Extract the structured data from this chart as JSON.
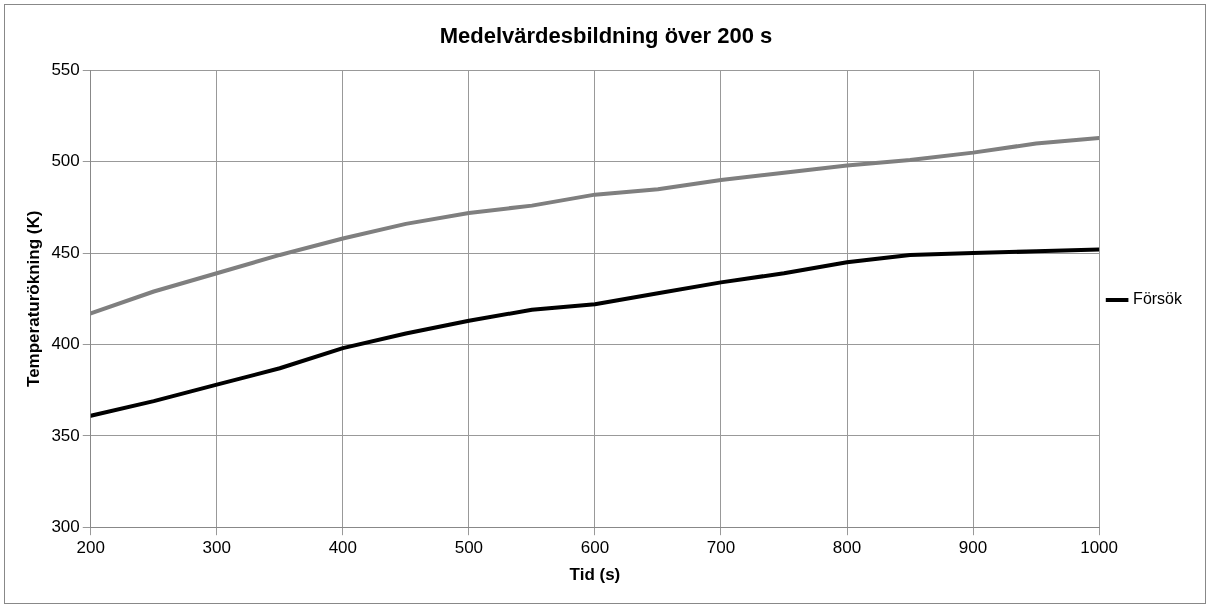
{
  "chart_data": {
    "type": "line",
    "title": "Medelvärdesbildning över 200 s",
    "xlabel": "Tid (s)",
    "ylabel": "Temperaturökning (K)",
    "xlim": [
      200,
      1000
    ],
    "xticks": [
      200,
      300,
      400,
      500,
      600,
      700,
      800,
      900,
      1000
    ],
    "ylim": [
      300,
      550
    ],
    "yticks": [
      300,
      350,
      400,
      450,
      500,
      550
    ],
    "grid": true,
    "legend": "right",
    "marker": "none",
    "line_style": "solid",
    "series": [
      {
        "name": "Försök",
        "color": "#000000",
        "x": [
          200,
          250,
          300,
          350,
          400,
          450,
          500,
          550,
          600,
          650,
          700,
          750,
          800,
          850,
          900,
          950,
          1000
        ],
        "values": [
          361,
          369,
          378,
          387,
          398,
          406,
          413,
          419,
          422,
          428,
          434,
          439,
          445,
          449,
          450,
          451,
          452
        ]
      },
      {
        "color": "#7f7f7f",
        "x": [
          200,
          250,
          300,
          350,
          400,
          450,
          500,
          550,
          600,
          650,
          700,
          750,
          800,
          850,
          900,
          950,
          1000
        ],
        "values": [
          417,
          429,
          439,
          449,
          458,
          466,
          472,
          476,
          482,
          485,
          490,
          494,
          498,
          501,
          505,
          510,
          513
        ]
      }
    ]
  }
}
